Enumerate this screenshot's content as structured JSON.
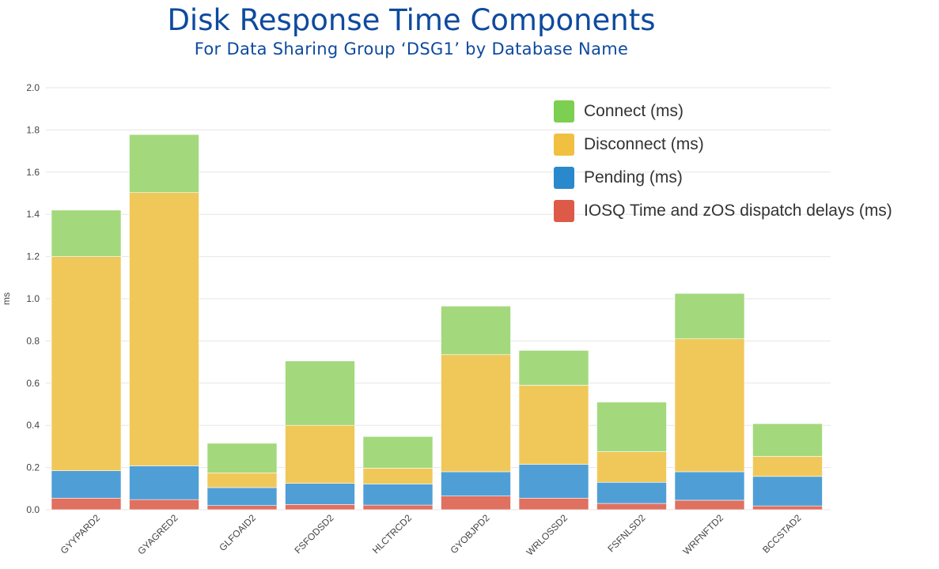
{
  "chart_data": {
    "type": "bar",
    "stacked": true,
    "title": "Disk Response Time Components",
    "subtitle": "For Data Sharing Group ‘DSG1’ by Database Name",
    "ylabel": "ms",
    "xlabel": "",
    "ylim": [
      0,
      2.0
    ],
    "yticks": [
      "0.0",
      "0.2",
      "0.4",
      "0.6",
      "0.8",
      "1.0",
      "1.2",
      "1.4",
      "1.6",
      "1.8",
      "2.0"
    ],
    "grid": true,
    "legend_position": "top-right",
    "categories": [
      "GYYPARD2",
      "GYAGRED2",
      "GLFOAID2",
      "FSFODSD2",
      "HLCTRCD2",
      "GYOBJPD2",
      "WRLOSSD2",
      "FSFNLSD2",
      "WRFNFTD2",
      "BCCSTAD2"
    ],
    "series": [
      {
        "name": "IOSQ Time and zOS dispatch delays (ms)",
        "color": "#e07060",
        "values": [
          0.055,
          0.048,
          0.02,
          0.025,
          0.022,
          0.065,
          0.055,
          0.03,
          0.045,
          0.018
        ]
      },
      {
        "name": "Pending (ms)",
        "color": "#4f9fd6",
        "values": [
          0.13,
          0.16,
          0.085,
          0.1,
          0.1,
          0.115,
          0.16,
          0.1,
          0.135,
          0.14
        ]
      },
      {
        "name": "Disconnect (ms)",
        "color": "#f0c85a",
        "values": [
          1.015,
          1.295,
          0.07,
          0.275,
          0.075,
          0.555,
          0.375,
          0.145,
          0.63,
          0.095
        ]
      },
      {
        "name": "Connect (ms)",
        "color": "#a3d97c",
        "values": [
          0.22,
          0.275,
          0.14,
          0.305,
          0.15,
          0.23,
          0.165,
          0.235,
          0.215,
          0.155
        ]
      }
    ],
    "legend_order": [
      "Connect (ms)",
      "Disconnect (ms)",
      "Pending (ms)",
      "IOSQ Time and zOS dispatch delays (ms)"
    ],
    "legend_colors": [
      "#7ccf50",
      "#f0c040",
      "#2a88cc",
      "#de5a48"
    ]
  }
}
